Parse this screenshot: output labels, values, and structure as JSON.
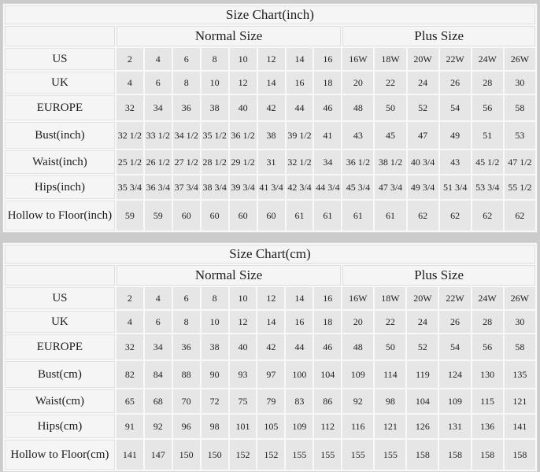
{
  "tables": [
    {
      "title": "Size Chart(inch)",
      "groups": [
        {
          "label": "Normal Size",
          "span": 8
        },
        {
          "label": "Plus Size",
          "span": 6
        }
      ],
      "rows": [
        {
          "label": "US",
          "values": [
            "2",
            "4",
            "6",
            "8",
            "10",
            "12",
            "14",
            "16",
            "16W",
            "18W",
            "20W",
            "22W",
            "24W",
            "26W"
          ]
        },
        {
          "label": "UK",
          "values": [
            "4",
            "6",
            "8",
            "10",
            "12",
            "14",
            "16",
            "18",
            "20",
            "22",
            "24",
            "26",
            "28",
            "30"
          ]
        },
        {
          "label": "EUROPE",
          "values": [
            "32",
            "34",
            "36",
            "38",
            "40",
            "42",
            "44",
            "46",
            "48",
            "50",
            "52",
            "54",
            "56",
            "58"
          ]
        },
        {
          "label": "Bust(inch)",
          "values": [
            "32 1/2",
            "33 1/2",
            "34 1/2",
            "35 1/2",
            "36 1/2",
            "38",
            "39 1/2",
            "41",
            "43",
            "45",
            "47",
            "49",
            "51",
            "53"
          ]
        },
        {
          "label": "Waist(inch)",
          "values": [
            "25 1/2",
            "26 1/2",
            "27 1/2",
            "28 1/2",
            "29 1/2",
            "31",
            "32 1/2",
            "34",
            "36 1/2",
            "38 1/2",
            "40 3/4",
            "43",
            "45 1/2",
            "47 1/2"
          ]
        },
        {
          "label": "Hips(inch)",
          "values": [
            "35 3/4",
            "36 3/4",
            "37 3/4",
            "38 3/4",
            "39 3/4",
            "41 3/4",
            "42 3/4",
            "44 3/4",
            "45 3/4",
            "47 3/4",
            "49 3/4",
            "51 3/4",
            "53 3/4",
            "55 1/2"
          ]
        },
        {
          "label": "Hollow to Floor(inch)",
          "values": [
            "59",
            "59",
            "60",
            "60",
            "60",
            "60",
            "61",
            "61",
            "61",
            "61",
            "62",
            "62",
            "62",
            "62"
          ]
        }
      ]
    },
    {
      "title": "Size Chart(cm)",
      "groups": [
        {
          "label": "Normal Size",
          "span": 8
        },
        {
          "label": "Plus Size",
          "span": 6
        }
      ],
      "rows": [
        {
          "label": "US",
          "values": [
            "2",
            "4",
            "6",
            "8",
            "10",
            "12",
            "14",
            "16",
            "16W",
            "18W",
            "20W",
            "22W",
            "24W",
            "26W"
          ]
        },
        {
          "label": "UK",
          "values": [
            "4",
            "6",
            "8",
            "10",
            "12",
            "14",
            "16",
            "18",
            "20",
            "22",
            "24",
            "26",
            "28",
            "30"
          ]
        },
        {
          "label": "EUROPE",
          "values": [
            "32",
            "34",
            "36",
            "38",
            "40",
            "42",
            "44",
            "46",
            "48",
            "50",
            "52",
            "54",
            "56",
            "58"
          ]
        },
        {
          "label": "Bust(cm)",
          "values": [
            "82",
            "84",
            "88",
            "90",
            "93",
            "97",
            "100",
            "104",
            "109",
            "114",
            "119",
            "124",
            "130",
            "135"
          ]
        },
        {
          "label": "Waist(cm)",
          "values": [
            "65",
            "68",
            "70",
            "72",
            "75",
            "79",
            "83",
            "86",
            "92",
            "98",
            "104",
            "109",
            "115",
            "121"
          ]
        },
        {
          "label": "Hips(cm)",
          "values": [
            "91",
            "92",
            "96",
            "98",
            "101",
            "105",
            "109",
            "112",
            "116",
            "121",
            "126",
            "131",
            "136",
            "141"
          ]
        },
        {
          "label": "Hollow to Floor(cm)",
          "values": [
            "141",
            "147",
            "150",
            "150",
            "152",
            "152",
            "155",
            "155",
            "155",
            "155",
            "158",
            "158",
            "158",
            "158"
          ]
        }
      ]
    }
  ]
}
